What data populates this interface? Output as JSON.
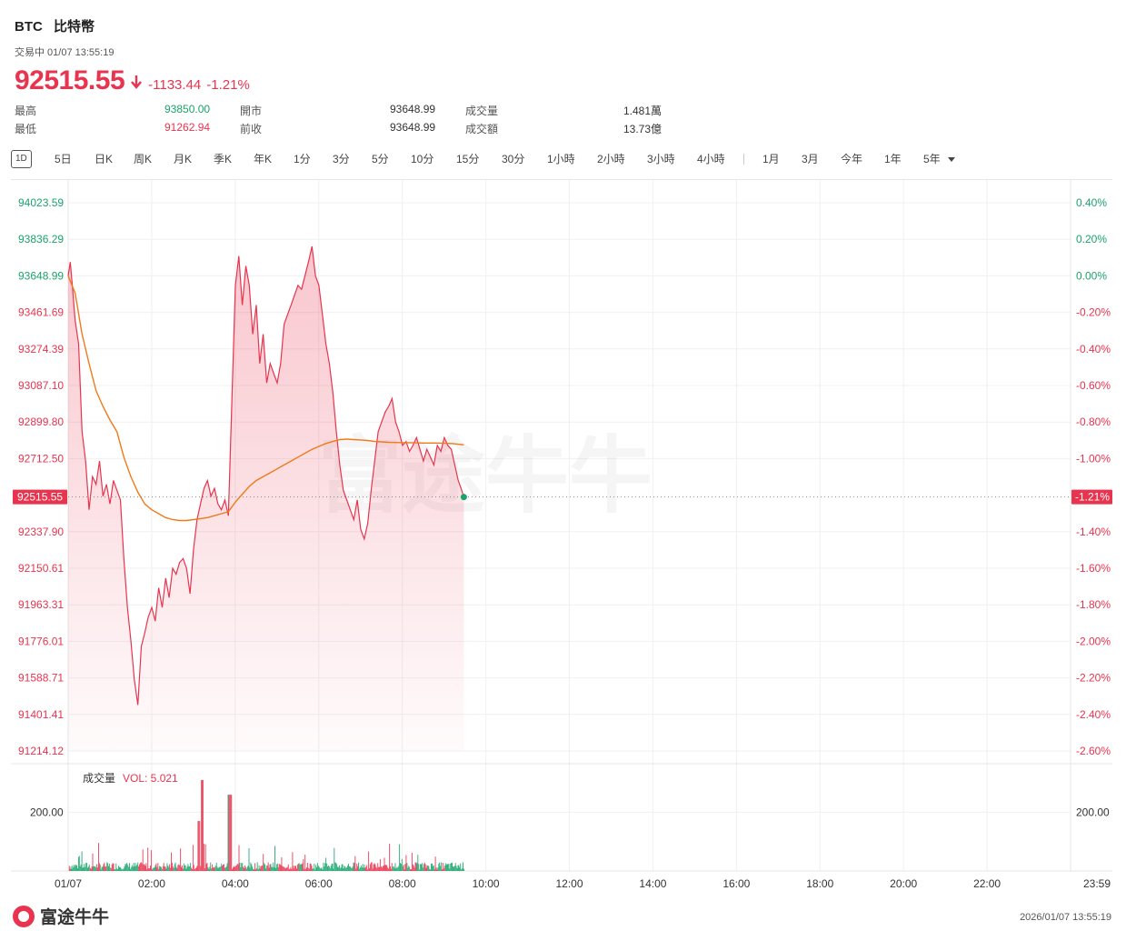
{
  "header": {
    "symbol": "BTC",
    "name": "比特幣",
    "status": "交易中 01/07 13:55:19",
    "price": "92515.55",
    "change": "-1133.44",
    "change_pct": "-1.21%"
  },
  "stats": [
    {
      "label": "最高",
      "value": "93850.00",
      "color": "#1aa36b"
    },
    {
      "label": "最低",
      "value": "91262.94",
      "color": "#e8344e"
    },
    {
      "label": "開市",
      "value": "93648.99",
      "color": "#333333"
    },
    {
      "label": "前收",
      "value": "93648.99",
      "color": "#333333"
    },
    {
      "label": "成交量",
      "value": "1.481萬",
      "color": "#333333"
    },
    {
      "label": "成交額",
      "value": "13.73億",
      "color": "#333333"
    }
  ],
  "tabs": [
    "1D",
    "5日",
    "日K",
    "周K",
    "月K",
    "季K",
    "年K",
    "1分",
    "3分",
    "5分",
    "10分",
    "15分",
    "30分",
    "1小時",
    "2小時",
    "3小時",
    "4小時",
    "1月",
    "3月",
    "今年",
    "1年",
    "5年"
  ],
  "active_tab": "1D",
  "volume_label": "成交量",
  "volume_value": "VOL: 5.021",
  "footer": {
    "brand": "富途牛牛",
    "watermark": "富途牛牛",
    "timestamp": "2026/01/07 13:55:19"
  },
  "chart_data": {
    "type": "line",
    "x_ticks": [
      "01/07",
      "02:00",
      "04:00",
      "06:00",
      "08:00",
      "10:00",
      "12:00",
      "14:00",
      "16:00",
      "18:00",
      "20:00",
      "22:00",
      "23:59"
    ],
    "y_left_ticks": [
      "94023.59",
      "93836.29",
      "93648.99",
      "93461.69",
      "93274.39",
      "93087.10",
      "92899.80",
      "92712.50",
      "92337.90",
      "92150.61",
      "91963.31",
      "91776.01",
      "91588.71",
      "91401.41",
      "91214.12"
    ],
    "y_right_ticks": [
      "0.40%",
      "0.20%",
      "0.00%",
      "-0.20%",
      "-0.40%",
      "-0.60%",
      "-0.80%",
      "-1.00%",
      "-1.40%",
      "-1.60%",
      "-1.80%",
      "-2.00%",
      "-2.20%",
      "-2.40%",
      "-2.60%"
    ],
    "ylim": [
      91214.12,
      94023.59
    ],
    "prev_close": 93648.99,
    "current_price_label": "92515.55",
    "current_pct_label": "-1.21%",
    "volume_axis_label": "200.00",
    "volume_max": 350,
    "price_series": {
      "name": "",
      "color": "#e8344e",
      "points": [
        [
          0,
          93648.99
        ],
        [
          3,
          93720
        ],
        [
          6,
          93600
        ],
        [
          10,
          93420
        ],
        [
          15,
          93300
        ],
        [
          20,
          92850
        ],
        [
          25,
          92700
        ],
        [
          30,
          92450
        ],
        [
          35,
          92620
        ],
        [
          40,
          92580
        ],
        [
          45,
          92700
        ],
        [
          50,
          92520
        ],
        [
          55,
          92580
        ],
        [
          60,
          92480
        ],
        [
          65,
          92600
        ],
        [
          70,
          92550
        ],
        [
          75,
          92500
        ],
        [
          80,
          92200
        ],
        [
          85,
          91950
        ],
        [
          90,
          91780
        ],
        [
          95,
          91580
        ],
        [
          100,
          91450
        ],
        [
          105,
          91750
        ],
        [
          110,
          91820
        ],
        [
          115,
          91900
        ],
        [
          120,
          91950
        ],
        [
          125,
          91880
        ],
        [
          130,
          92050
        ],
        [
          135,
          91950
        ],
        [
          140,
          92100
        ],
        [
          145,
          92000
        ],
        [
          150,
          92150
        ],
        [
          155,
          92120
        ],
        [
          160,
          92180
        ],
        [
          165,
          92200
        ],
        [
          170,
          92150
        ],
        [
          175,
          92020
        ],
        [
          180,
          92250
        ],
        [
          185,
          92400
        ],
        [
          190,
          92480
        ],
        [
          195,
          92560
        ],
        [
          200,
          92600
        ],
        [
          205,
          92520
        ],
        [
          210,
          92560
        ],
        [
          215,
          92480
        ],
        [
          220,
          92450
        ],
        [
          225,
          92500
        ],
        [
          230,
          92420
        ],
        [
          235,
          93000
        ],
        [
          240,
          93600
        ],
        [
          245,
          93750
        ],
        [
          250,
          93500
        ],
        [
          255,
          93700
        ],
        [
          260,
          93600
        ],
        [
          265,
          93350
        ],
        [
          270,
          93500
        ],
        [
          275,
          93200
        ],
        [
          280,
          93350
        ],
        [
          285,
          93100
        ],
        [
          290,
          93200
        ],
        [
          295,
          93150
        ],
        [
          300,
          93100
        ],
        [
          305,
          93200
        ],
        [
          310,
          93400
        ],
        [
          315,
          93450
        ],
        [
          320,
          93500
        ],
        [
          325,
          93550
        ],
        [
          330,
          93600
        ],
        [
          335,
          93580
        ],
        [
          340,
          93650
        ],
        [
          345,
          93720
        ],
        [
          350,
          93800
        ],
        [
          355,
          93650
        ],
        [
          360,
          93600
        ],
        [
          365,
          93450
        ],
        [
          370,
          93300
        ],
        [
          375,
          93200
        ],
        [
          380,
          93050
        ],
        [
          385,
          92850
        ],
        [
          390,
          92680
        ],
        [
          395,
          92550
        ],
        [
          400,
          92500
        ],
        [
          405,
          92450
        ],
        [
          410,
          92400
        ],
        [
          415,
          92500
        ],
        [
          420,
          92350
        ],
        [
          425,
          92300
        ],
        [
          430,
          92380
        ],
        [
          435,
          92550
        ],
        [
          440,
          92700
        ],
        [
          445,
          92850
        ],
        [
          450,
          92900
        ],
        [
          455,
          92950
        ],
        [
          460,
          92980
        ],
        [
          465,
          93020
        ],
        [
          470,
          92900
        ],
        [
          475,
          92850
        ],
        [
          480,
          92780
        ],
        [
          485,
          92800
        ],
        [
          490,
          92750
        ],
        [
          495,
          92780
        ],
        [
          500,
          92820
        ],
        [
          505,
          92760
        ],
        [
          510,
          92700
        ],
        [
          515,
          92760
        ],
        [
          520,
          92720
        ],
        [
          525,
          92680
        ],
        [
          530,
          92780
        ],
        [
          535,
          92750
        ],
        [
          540,
          92820
        ],
        [
          545,
          92780
        ],
        [
          550,
          92760
        ],
        [
          555,
          92680
        ],
        [
          560,
          92600
        ],
        [
          564,
          92560
        ],
        [
          568,
          92515.55
        ]
      ]
    },
    "avg_series": {
      "name": "",
      "color": "#f07a1a",
      "points": [
        [
          0,
          93648.99
        ],
        [
          10,
          93560
        ],
        [
          20,
          93350
        ],
        [
          30,
          93200
        ],
        [
          40,
          93060
        ],
        [
          50,
          92980
        ],
        [
          60,
          92910
        ],
        [
          70,
          92850
        ],
        [
          80,
          92720
        ],
        [
          90,
          92620
        ],
        [
          100,
          92540
        ],
        [
          110,
          92480
        ],
        [
          120,
          92450
        ],
        [
          130,
          92430
        ],
        [
          140,
          92410
        ],
        [
          150,
          92400
        ],
        [
          160,
          92395
        ],
        [
          170,
          92395
        ],
        [
          180,
          92400
        ],
        [
          190,
          92405
        ],
        [
          200,
          92410
        ],
        [
          210,
          92420
        ],
        [
          220,
          92430
        ],
        [
          230,
          92440
        ],
        [
          240,
          92490
        ],
        [
          250,
          92530
        ],
        [
          260,
          92570
        ],
        [
          270,
          92600
        ],
        [
          280,
          92620
        ],
        [
          290,
          92640
        ],
        [
          300,
          92660
        ],
        [
          310,
          92680
        ],
        [
          320,
          92700
        ],
        [
          330,
          92720
        ],
        [
          340,
          92740
        ],
        [
          350,
          92760
        ],
        [
          360,
          92775
        ],
        [
          370,
          92790
        ],
        [
          380,
          92800
        ],
        [
          390,
          92810
        ],
        [
          400,
          92812
        ],
        [
          410,
          92810
        ],
        [
          420,
          92808
        ],
        [
          430,
          92805
        ],
        [
          440,
          92800
        ],
        [
          450,
          92798
        ],
        [
          460,
          92796
        ],
        [
          470,
          92795
        ],
        [
          480,
          92794
        ],
        [
          490,
          92794
        ],
        [
          500,
          92793
        ],
        [
          510,
          92792
        ],
        [
          520,
          92792
        ],
        [
          530,
          92792
        ],
        [
          540,
          92791
        ],
        [
          550,
          92790
        ],
        [
          560,
          92786
        ],
        [
          568,
          92783
        ]
      ]
    }
  }
}
